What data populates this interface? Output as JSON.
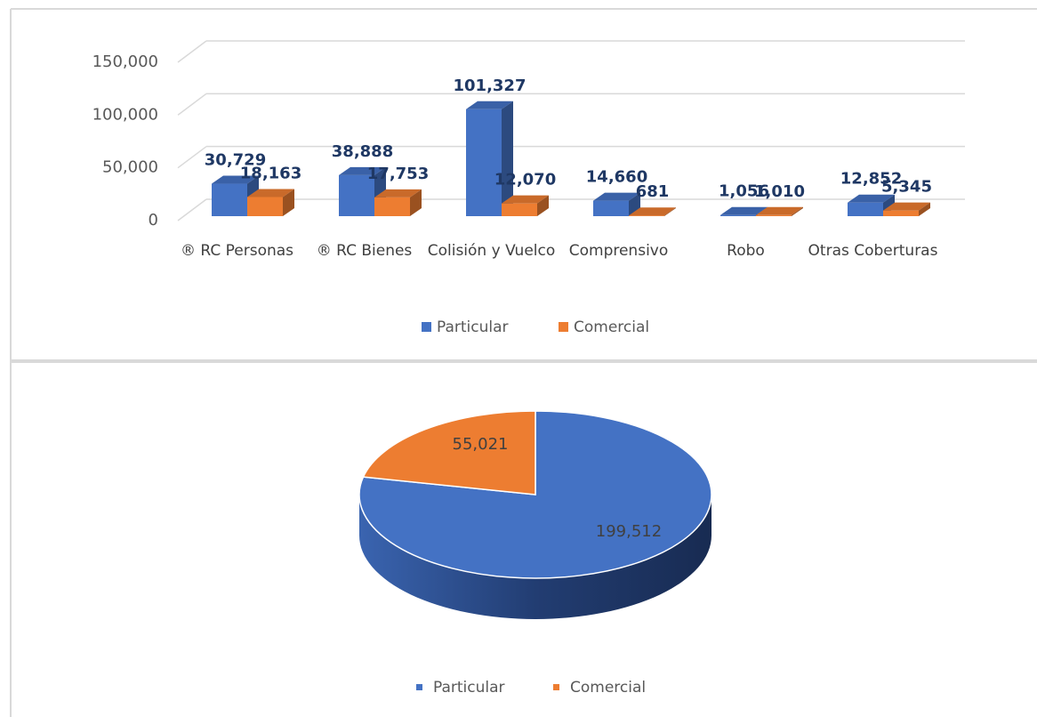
{
  "chart_data": [
    {
      "type": "bar3d",
      "categories": [
        "® RC Personas",
        "® RC Bienes",
        "Colisión y Vuelco",
        "Comprensivo",
        "Robo",
        "Otras Coberturas"
      ],
      "series": [
        {
          "name": "Particular",
          "color": "#4472c4",
          "values": [
            30729,
            38888,
            101327,
            14660,
            1056,
            12852
          ],
          "value_labels": [
            "30,729",
            "38,888",
            "101,327",
            "14,660",
            "1,056",
            "12,852"
          ]
        },
        {
          "name": "Comercial",
          "color": "#ed7d31",
          "values": [
            18163,
            17753,
            12070,
            681,
            1010,
            5345
          ],
          "value_labels": [
            "18,163",
            "17,753",
            "12,070",
            "681",
            "1,010",
            "5,345"
          ]
        }
      ],
      "ylim": [
        0,
        150000
      ],
      "yticks": [
        0,
        {
          "value": 50000,
          "label": "50,000"
        },
        {
          "value": 100000,
          "label": "100,000"
        },
        {
          "value": 150000,
          "label": "150,000"
        }
      ],
      "grid": true,
      "legend": "bottom"
    },
    {
      "type": "pie3d",
      "categories": [
        "Particular",
        "Comercial"
      ],
      "values": [
        199512,
        55021
      ],
      "value_labels": [
        "199,512",
        "55,021"
      ],
      "colors": [
        "#4472c4",
        "#ed7d31"
      ],
      "legend": "bottom"
    }
  ]
}
